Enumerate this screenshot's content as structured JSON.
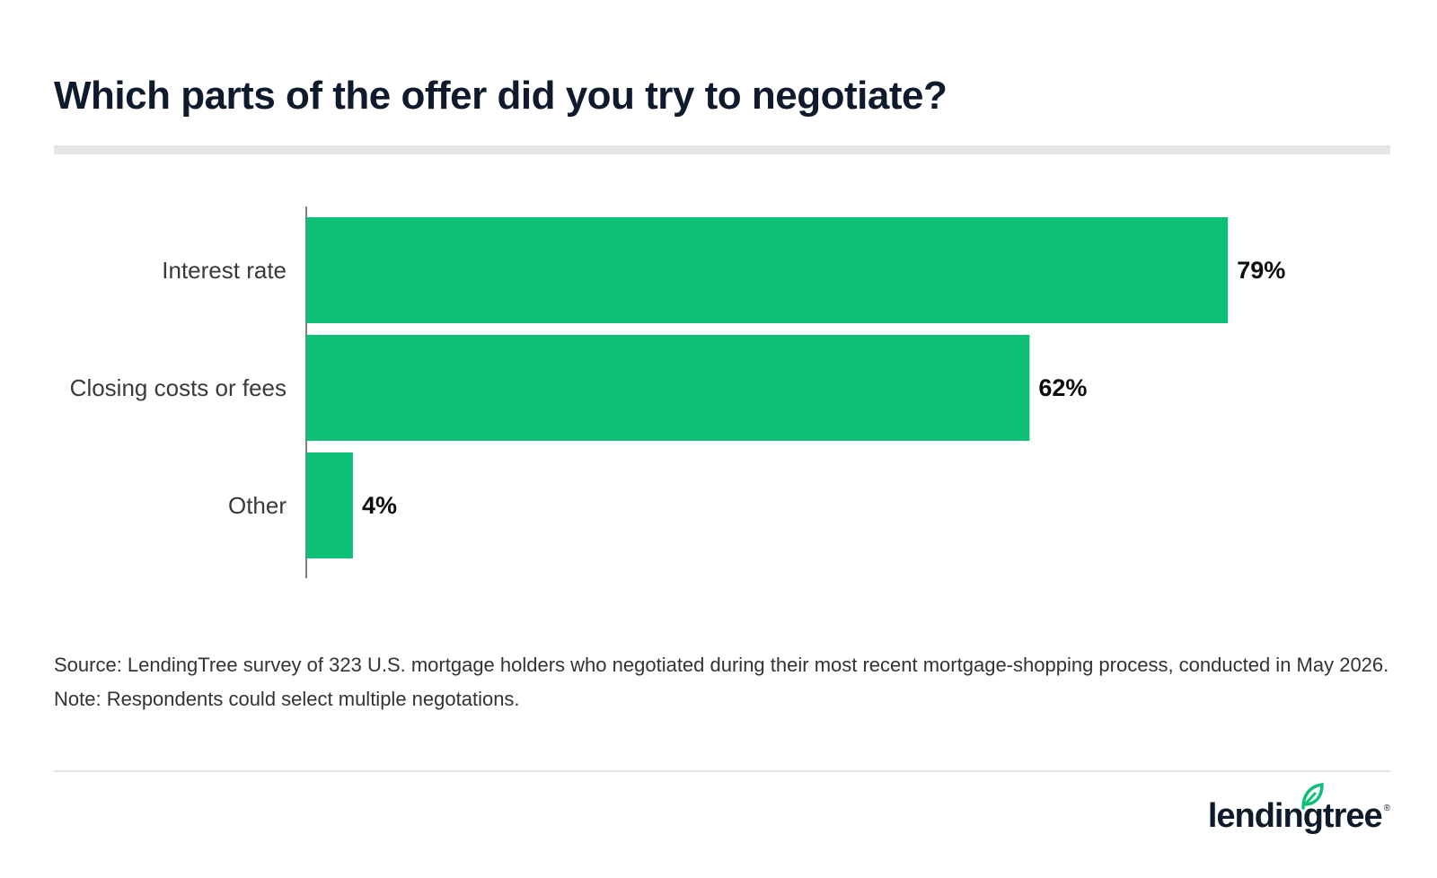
{
  "title": "Which parts of the offer did you try to negotiate?",
  "chart_data": {
    "type": "bar",
    "orientation": "horizontal",
    "title": "Which parts of the offer did you try to negotiate?",
    "categories": [
      "Interest rate",
      "Closing costs or fees",
      "Other"
    ],
    "values": [
      79,
      62,
      4
    ],
    "value_labels": [
      "79%",
      "62%",
      "4%"
    ],
    "unit": "%",
    "xlim": [
      0,
      100
    ],
    "xlabel": "",
    "ylabel": "",
    "grid": false,
    "legend": "none",
    "bar_color": "#0cc177"
  },
  "source": "Source: LendingTree survey of 323 U.S. mortgage holders who negotiated during their most recent mortgage-shopping process, conducted in May 2026. Note: Respondents could select multiple negotations.",
  "logo": {
    "text": "lendingtree",
    "registered": "®",
    "leaf_color": "#0cc177"
  }
}
